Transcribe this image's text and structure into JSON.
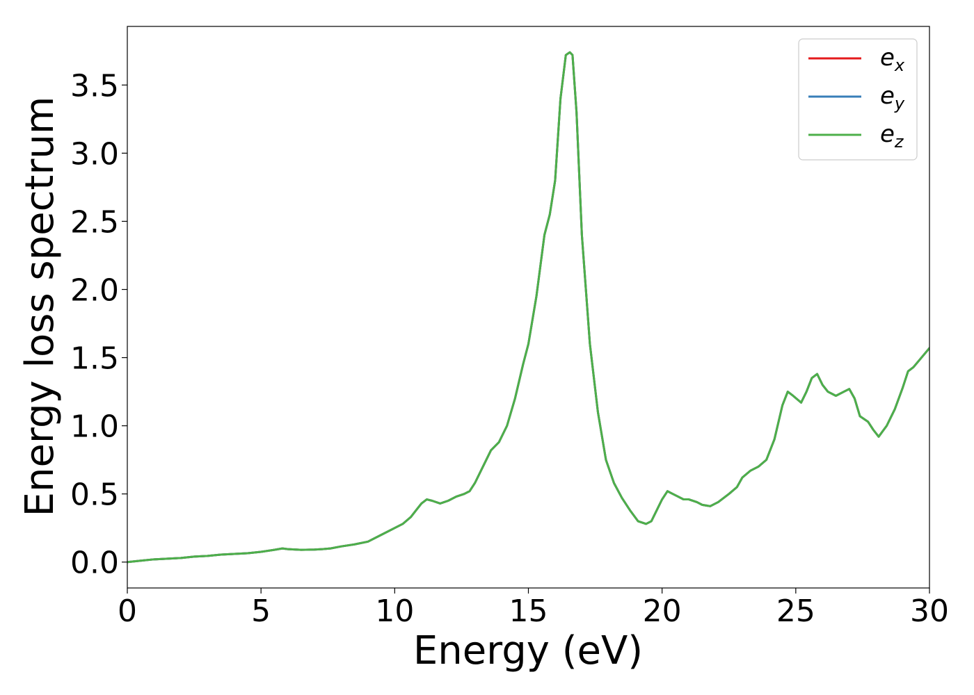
{
  "chart_data": {
    "type": "line",
    "xlabel": "Energy (eV)",
    "ylabel": "Energy loss spectrum",
    "xlim": [
      0,
      30
    ],
    "ylim": [
      -0.19,
      3.93
    ],
    "xticks": [
      0,
      5,
      10,
      15,
      20,
      25,
      30
    ],
    "yticks": [
      0.0,
      0.5,
      1.0,
      1.5,
      2.0,
      2.5,
      3.0,
      3.5
    ],
    "xtick_labels": [
      "0",
      "5",
      "10",
      "15",
      "20",
      "25",
      "30"
    ],
    "ytick_labels": [
      "0.0",
      "0.5",
      "1.0",
      "1.5",
      "2.0",
      "2.5",
      "3.0",
      "3.5"
    ],
    "grid": false,
    "legend_position": "top-right",
    "x": [
      0,
      0.5,
      1,
      1.5,
      2,
      2.5,
      3,
      3.5,
      4,
      4.5,
      5,
      5.5,
      5.8,
      6,
      6.5,
      7,
      7.3,
      7.6,
      8,
      8.5,
      9,
      9.5,
      10,
      10.3,
      10.6,
      10.8,
      11.0,
      11.2,
      11.4,
      11.7,
      12.0,
      12.3,
      12.6,
      12.8,
      13.0,
      13.3,
      13.6,
      13.9,
      14.2,
      14.5,
      14.8,
      15.0,
      15.3,
      15.6,
      15.8,
      16.0,
      16.2,
      16.4,
      16.55,
      16.65,
      16.8,
      17.0,
      17.3,
      17.6,
      17.9,
      18.2,
      18.5,
      18.8,
      19.1,
      19.4,
      19.6,
      19.8,
      20.0,
      20.2,
      20.4,
      20.6,
      20.8,
      21.0,
      21.3,
      21.5,
      21.8,
      22.1,
      22.5,
      22.8,
      23.0,
      23.3,
      23.6,
      23.9,
      24.2,
      24.5,
      24.7,
      24.9,
      25.2,
      25.4,
      25.6,
      25.8,
      26.0,
      26.2,
      26.5,
      26.8,
      27.0,
      27.2,
      27.4,
      27.7,
      27.9,
      28.1,
      28.4,
      28.7,
      29.0,
      29.2,
      29.4,
      29.7,
      30.0
    ],
    "series": [
      {
        "name": "e_x",
        "label_base": "e",
        "label_sub": "x",
        "color": "#e41a1c",
        "values": [
          0.0,
          0.01,
          0.02,
          0.025,
          0.03,
          0.04,
          0.045,
          0.055,
          0.06,
          0.065,
          0.075,
          0.09,
          0.1,
          0.095,
          0.09,
          0.092,
          0.095,
          0.1,
          0.115,
          0.13,
          0.15,
          0.2,
          0.25,
          0.28,
          0.33,
          0.38,
          0.43,
          0.46,
          0.45,
          0.43,
          0.45,
          0.48,
          0.5,
          0.52,
          0.58,
          0.7,
          0.82,
          0.88,
          1.0,
          1.2,
          1.45,
          1.6,
          1.95,
          2.4,
          2.55,
          2.8,
          3.4,
          3.72,
          3.74,
          3.72,
          3.3,
          2.4,
          1.6,
          1.1,
          0.75,
          0.58,
          0.47,
          0.38,
          0.3,
          0.28,
          0.3,
          0.38,
          0.46,
          0.52,
          0.5,
          0.48,
          0.46,
          0.46,
          0.44,
          0.42,
          0.41,
          0.44,
          0.5,
          0.55,
          0.62,
          0.67,
          0.7,
          0.75,
          0.9,
          1.15,
          1.25,
          1.22,
          1.17,
          1.25,
          1.35,
          1.38,
          1.3,
          1.25,
          1.22,
          1.25,
          1.27,
          1.2,
          1.07,
          1.03,
          0.97,
          0.92,
          1.0,
          1.12,
          1.28,
          1.4,
          1.43,
          1.5,
          1.57
        ]
      },
      {
        "name": "e_y",
        "label_base": "e",
        "label_sub": "y",
        "color": "#377eb8",
        "values": [
          0.0,
          0.01,
          0.02,
          0.025,
          0.03,
          0.04,
          0.045,
          0.055,
          0.06,
          0.065,
          0.075,
          0.09,
          0.1,
          0.095,
          0.09,
          0.092,
          0.095,
          0.1,
          0.115,
          0.13,
          0.15,
          0.2,
          0.25,
          0.28,
          0.33,
          0.38,
          0.43,
          0.46,
          0.45,
          0.43,
          0.45,
          0.48,
          0.5,
          0.52,
          0.58,
          0.7,
          0.82,
          0.88,
          1.0,
          1.2,
          1.45,
          1.6,
          1.95,
          2.4,
          2.55,
          2.8,
          3.4,
          3.72,
          3.74,
          3.72,
          3.3,
          2.4,
          1.6,
          1.1,
          0.75,
          0.58,
          0.47,
          0.38,
          0.3,
          0.28,
          0.3,
          0.38,
          0.46,
          0.52,
          0.5,
          0.48,
          0.46,
          0.46,
          0.44,
          0.42,
          0.41,
          0.44,
          0.5,
          0.55,
          0.62,
          0.67,
          0.7,
          0.75,
          0.9,
          1.15,
          1.25,
          1.22,
          1.17,
          1.25,
          1.35,
          1.38,
          1.3,
          1.25,
          1.22,
          1.25,
          1.27,
          1.2,
          1.07,
          1.03,
          0.97,
          0.92,
          1.0,
          1.12,
          1.28,
          1.4,
          1.43,
          1.5,
          1.57
        ]
      },
      {
        "name": "e_z",
        "label_base": "e",
        "label_sub": "z",
        "color": "#4daf4a",
        "values": [
          0.0,
          0.01,
          0.02,
          0.025,
          0.03,
          0.04,
          0.045,
          0.055,
          0.06,
          0.065,
          0.075,
          0.09,
          0.1,
          0.095,
          0.09,
          0.092,
          0.095,
          0.1,
          0.115,
          0.13,
          0.15,
          0.2,
          0.25,
          0.28,
          0.33,
          0.38,
          0.43,
          0.46,
          0.45,
          0.43,
          0.45,
          0.48,
          0.5,
          0.52,
          0.58,
          0.7,
          0.82,
          0.88,
          1.0,
          1.2,
          1.45,
          1.6,
          1.95,
          2.4,
          2.55,
          2.8,
          3.4,
          3.72,
          3.74,
          3.72,
          3.3,
          2.4,
          1.6,
          1.1,
          0.75,
          0.58,
          0.47,
          0.38,
          0.3,
          0.28,
          0.3,
          0.38,
          0.46,
          0.52,
          0.5,
          0.48,
          0.46,
          0.46,
          0.44,
          0.42,
          0.41,
          0.44,
          0.5,
          0.55,
          0.62,
          0.67,
          0.7,
          0.75,
          0.9,
          1.15,
          1.25,
          1.22,
          1.17,
          1.25,
          1.35,
          1.38,
          1.3,
          1.25,
          1.22,
          1.25,
          1.27,
          1.2,
          1.07,
          1.03,
          0.97,
          0.92,
          1.0,
          1.12,
          1.28,
          1.4,
          1.43,
          1.5,
          1.57
        ]
      }
    ]
  }
}
